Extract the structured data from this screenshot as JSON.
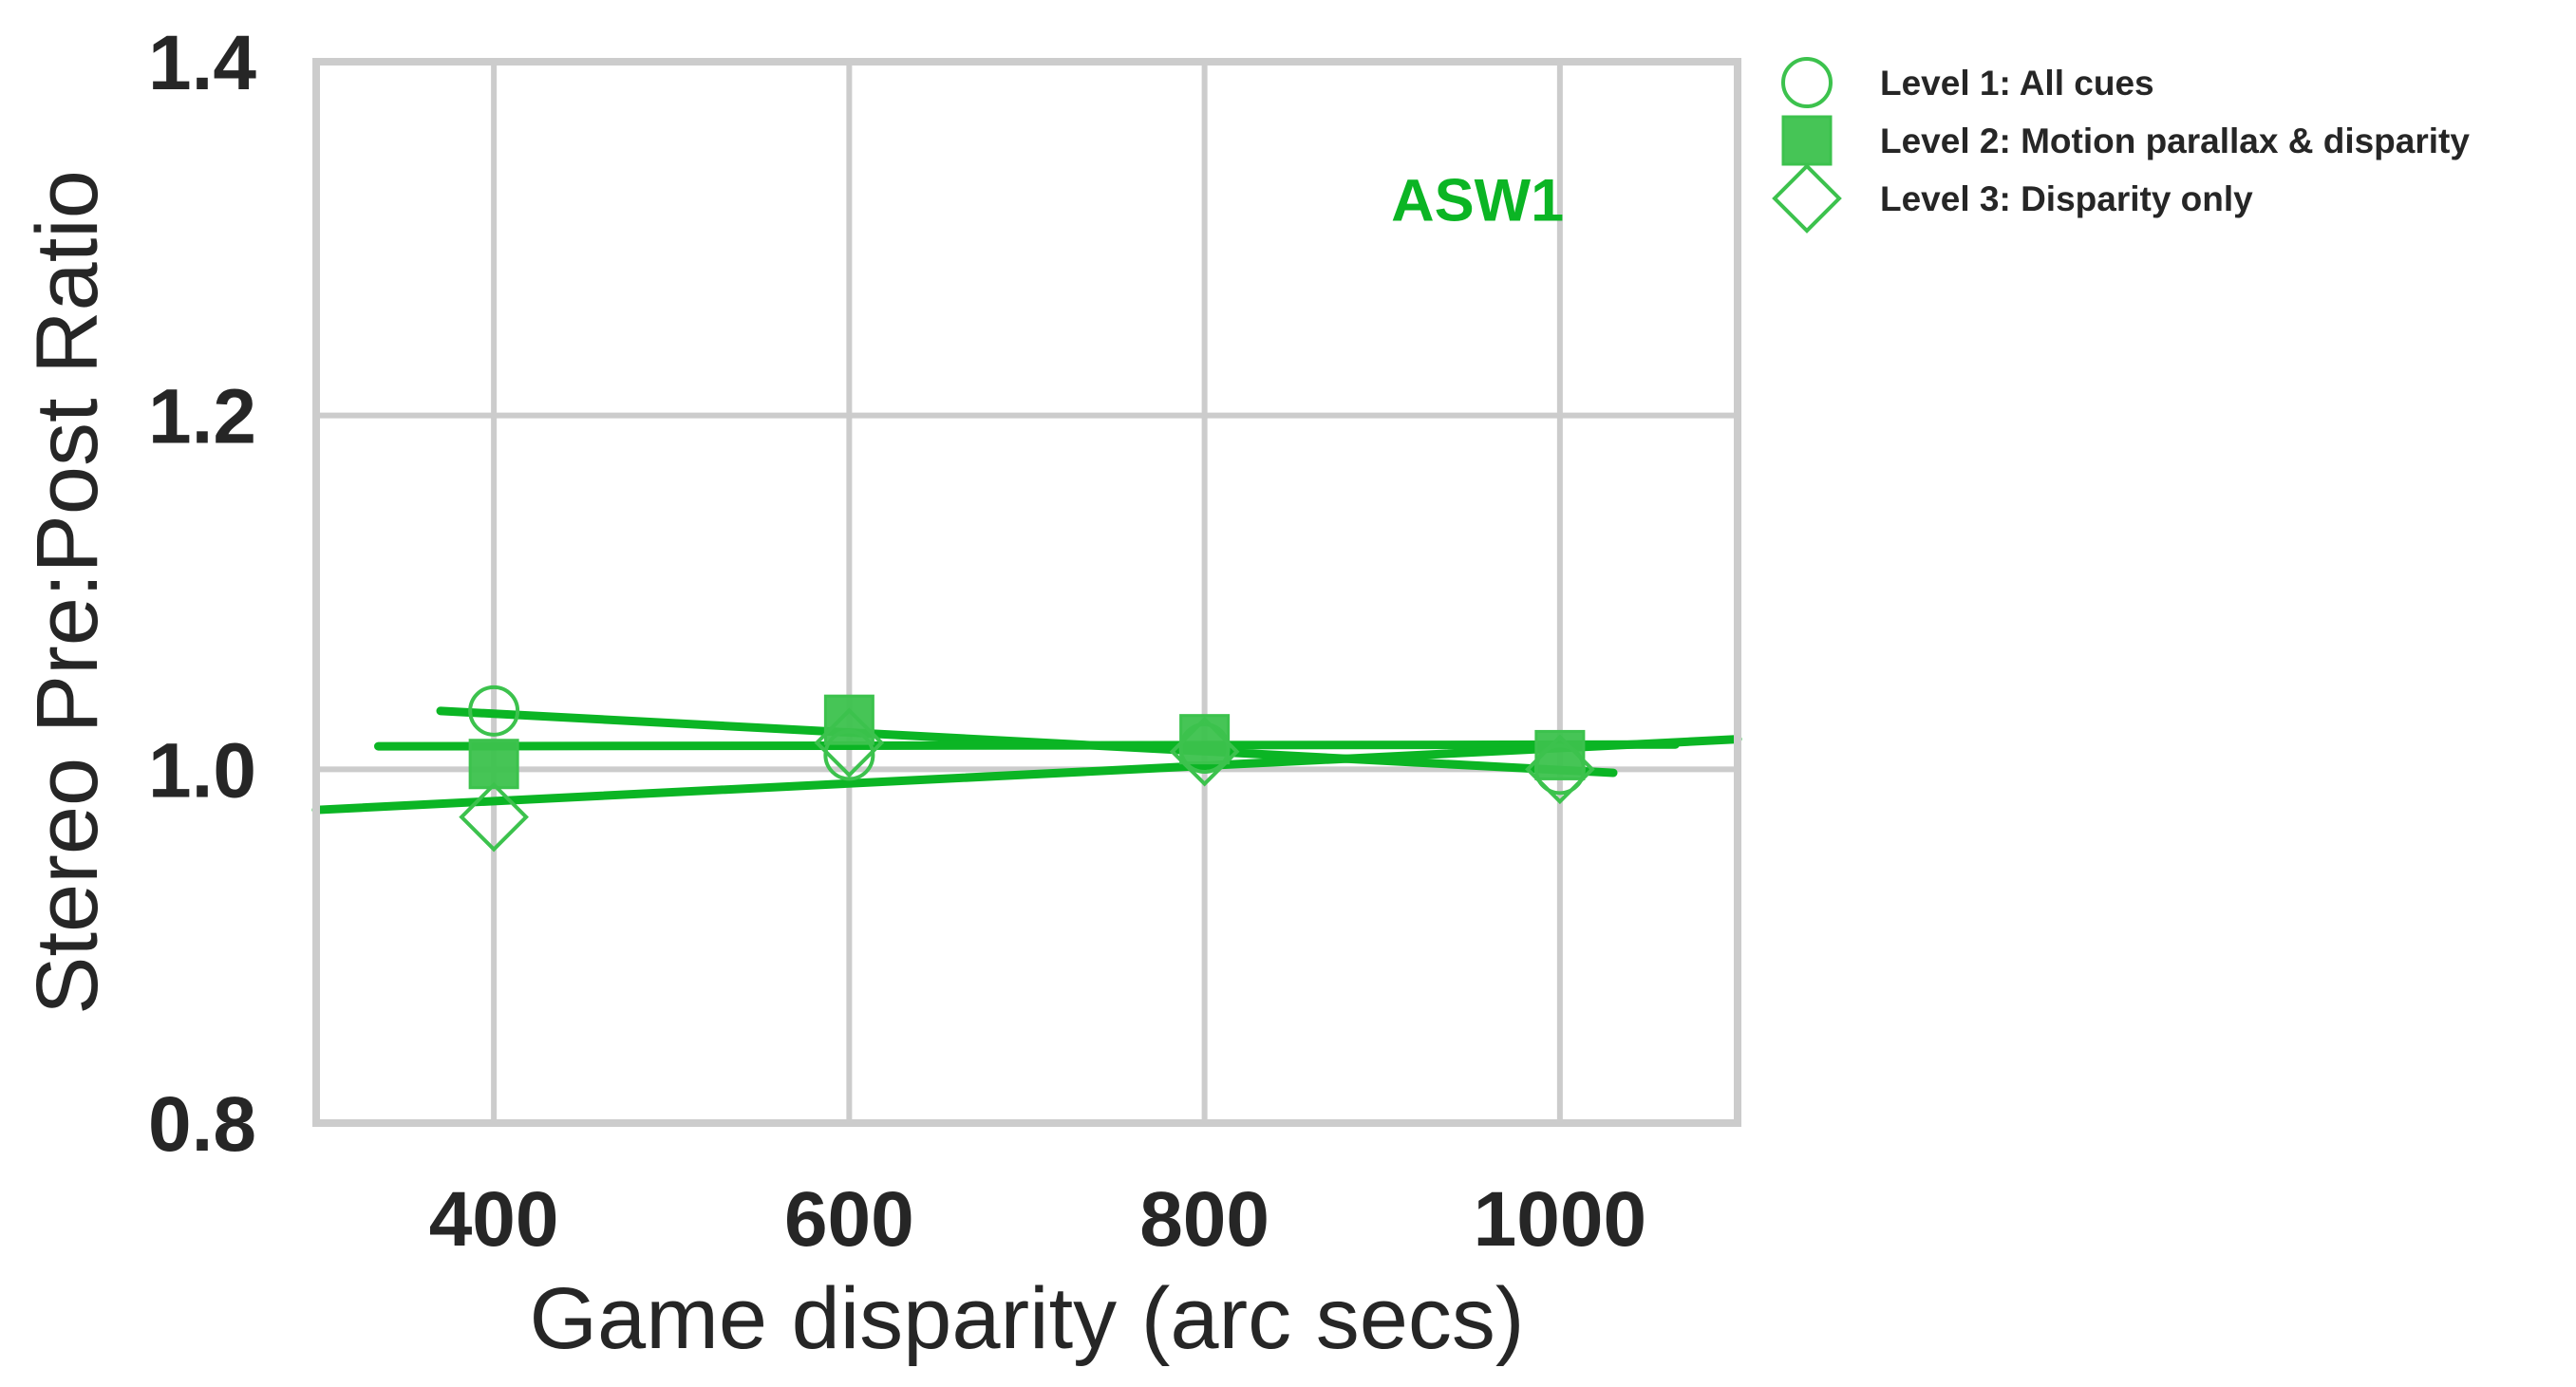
{
  "chart_data": {
    "type": "scatter",
    "title": "",
    "xlabel": "Game disparity (arc secs)",
    "ylabel": "Stereo Pre:Post Ratio",
    "xlim": [
      300,
      1100
    ],
    "ylim": [
      0.8,
      1.4
    ],
    "xticks": [
      400,
      600,
      800,
      1000
    ],
    "xtick_labels": [
      "400",
      "600",
      "800",
      "1000"
    ],
    "yticks": [
      0.8,
      1.0,
      1.2,
      1.4
    ],
    "ytick_labels": [
      "0.8",
      "1.0",
      "1.2",
      "1.4"
    ],
    "grid": true,
    "legend_position": "outside-top-right",
    "annotation": {
      "text": "ASW1",
      "x": 905,
      "y": 1.31,
      "color": "#0bb524"
    },
    "series": [
      {
        "name": "Level 1: All cues",
        "marker": "circle-open",
        "color": "#3cc24d",
        "x": [
          400,
          600,
          800,
          1000
        ],
        "y": [
          1.033,
          1.008,
          1.012,
          1.0
        ],
        "fit": {
          "x": [
            370,
            1030
          ],
          "y": [
            1.033,
            0.998
          ]
        }
      },
      {
        "name": "Level 2: Motion parallax & disparity",
        "marker": "square-filled",
        "color": "#3cc24d",
        "x": [
          400,
          600,
          800,
          1000
        ],
        "y": [
          1.003,
          1.028,
          1.017,
          1.008
        ],
        "fit": {
          "x": [
            335,
            1065
          ],
          "y": [
            1.013,
            1.014
          ]
        }
      },
      {
        "name": "Level 3: Disparity only",
        "marker": "diamond-open",
        "color": "#3cc24d",
        "x": [
          400,
          600,
          800,
          1000
        ],
        "y": [
          0.973,
          1.015,
          1.01,
          1.0
        ],
        "fit": {
          "x": [
            300,
            1100
          ],
          "y": [
            0.977,
            1.017
          ]
        }
      }
    ],
    "fit_line_color": "#0bb524"
  }
}
